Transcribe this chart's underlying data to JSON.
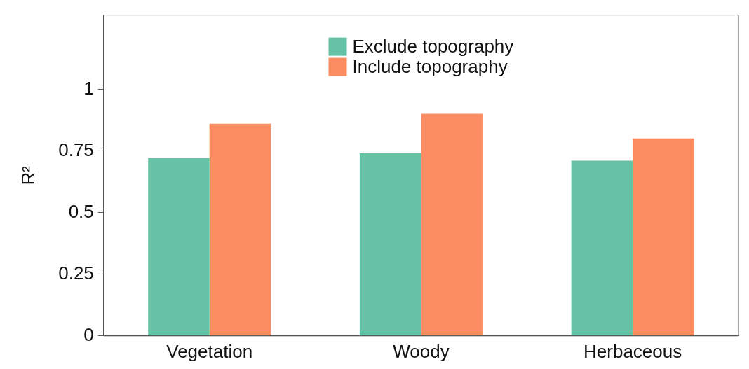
{
  "chart_data": {
    "type": "bar",
    "ylabel": "R²",
    "categories": [
      "Vegetation",
      "Woody",
      "Herbaceous"
    ],
    "series": [
      {
        "name": "Exclude topography",
        "color": "#66c2a5",
        "values": [
          0.72,
          0.74,
          0.71
        ]
      },
      {
        "name": "Include topography",
        "color": "#fc8d62",
        "values": [
          0.86,
          0.9,
          0.8
        ]
      }
    ],
    "ylim": [
      0,
      1.3
    ],
    "yticks": [
      0,
      0.25,
      0.5,
      0.75,
      1
    ],
    "grid": false,
    "legend": "top"
  }
}
